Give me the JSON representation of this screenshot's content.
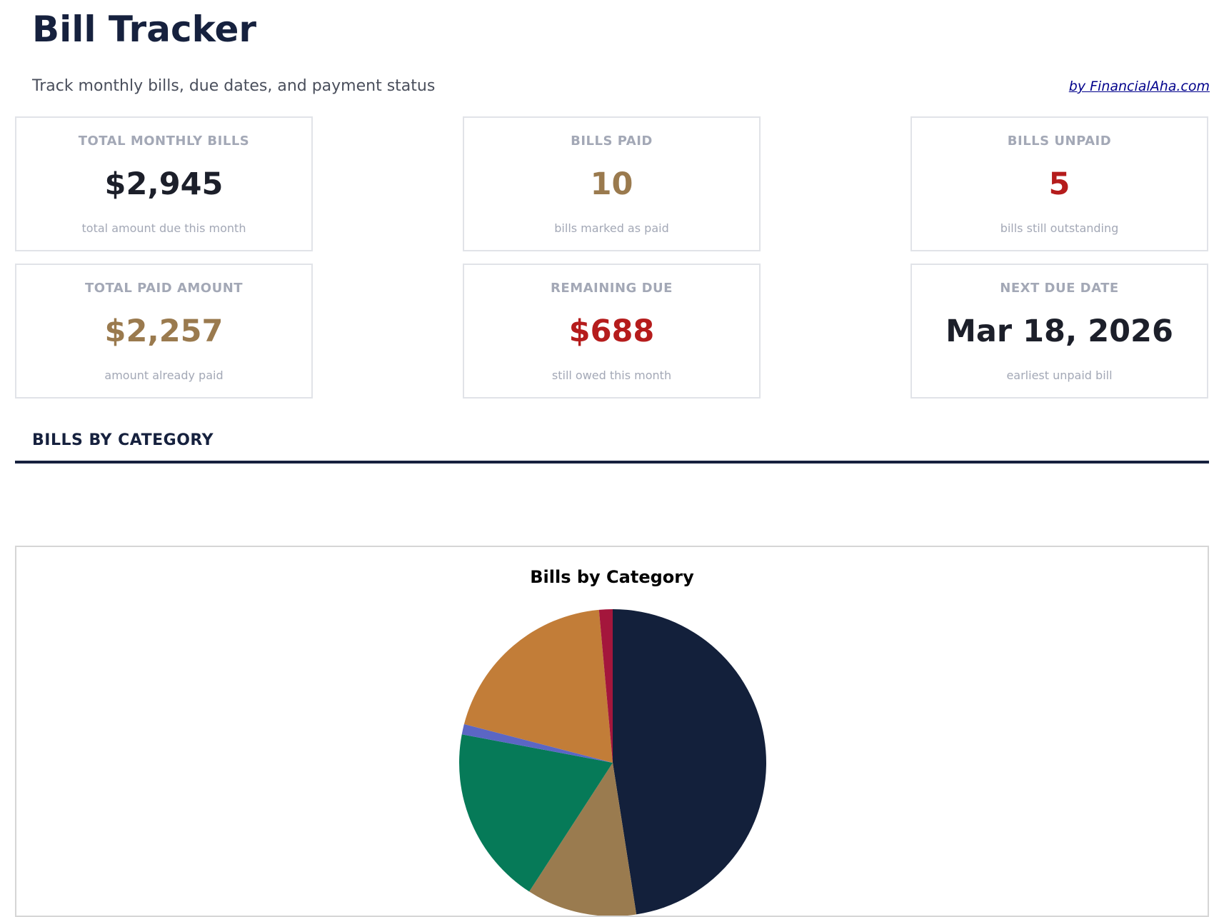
{
  "header": {
    "title": "Bill Tracker",
    "subtitle": "Track monthly bills, due dates, and payment status",
    "credit": "by FinancialAha.com"
  },
  "cards": [
    {
      "label": "TOTAL MONTHLY BILLS",
      "value": "$2,945",
      "sub": "total amount due this month",
      "color": "#1c1f2a"
    },
    {
      "label": "BILLS PAID",
      "value": "10",
      "sub": "bills marked as paid",
      "color": "#9a7a4e"
    },
    {
      "label": "BILLS UNPAID",
      "value": "5",
      "sub": "bills still outstanding",
      "color": "#b51c1c"
    },
    {
      "label": "TOTAL PAID AMOUNT",
      "value": "$2,257",
      "sub": "amount already paid",
      "color": "#9a7a4e"
    },
    {
      "label": "REMAINING DUE",
      "value": "$688",
      "sub": "still owed this month",
      "color": "#b51c1c"
    },
    {
      "label": "NEXT DUE DATE",
      "value": "Mar 18, 2026",
      "sub": "earliest unpaid bill",
      "color": "#1c1f2a"
    }
  ],
  "section": {
    "title": "BILLS BY CATEGORY"
  },
  "chart_data": {
    "type": "pie",
    "title": "Bills by Category",
    "values": [
      1400,
      342,
      554,
      32,
      575,
      42
    ],
    "colors": [
      "#13203b",
      "#9a7b4f",
      "#067a58",
      "#5b66c4",
      "#c27d38",
      "#a4163c"
    ]
  }
}
